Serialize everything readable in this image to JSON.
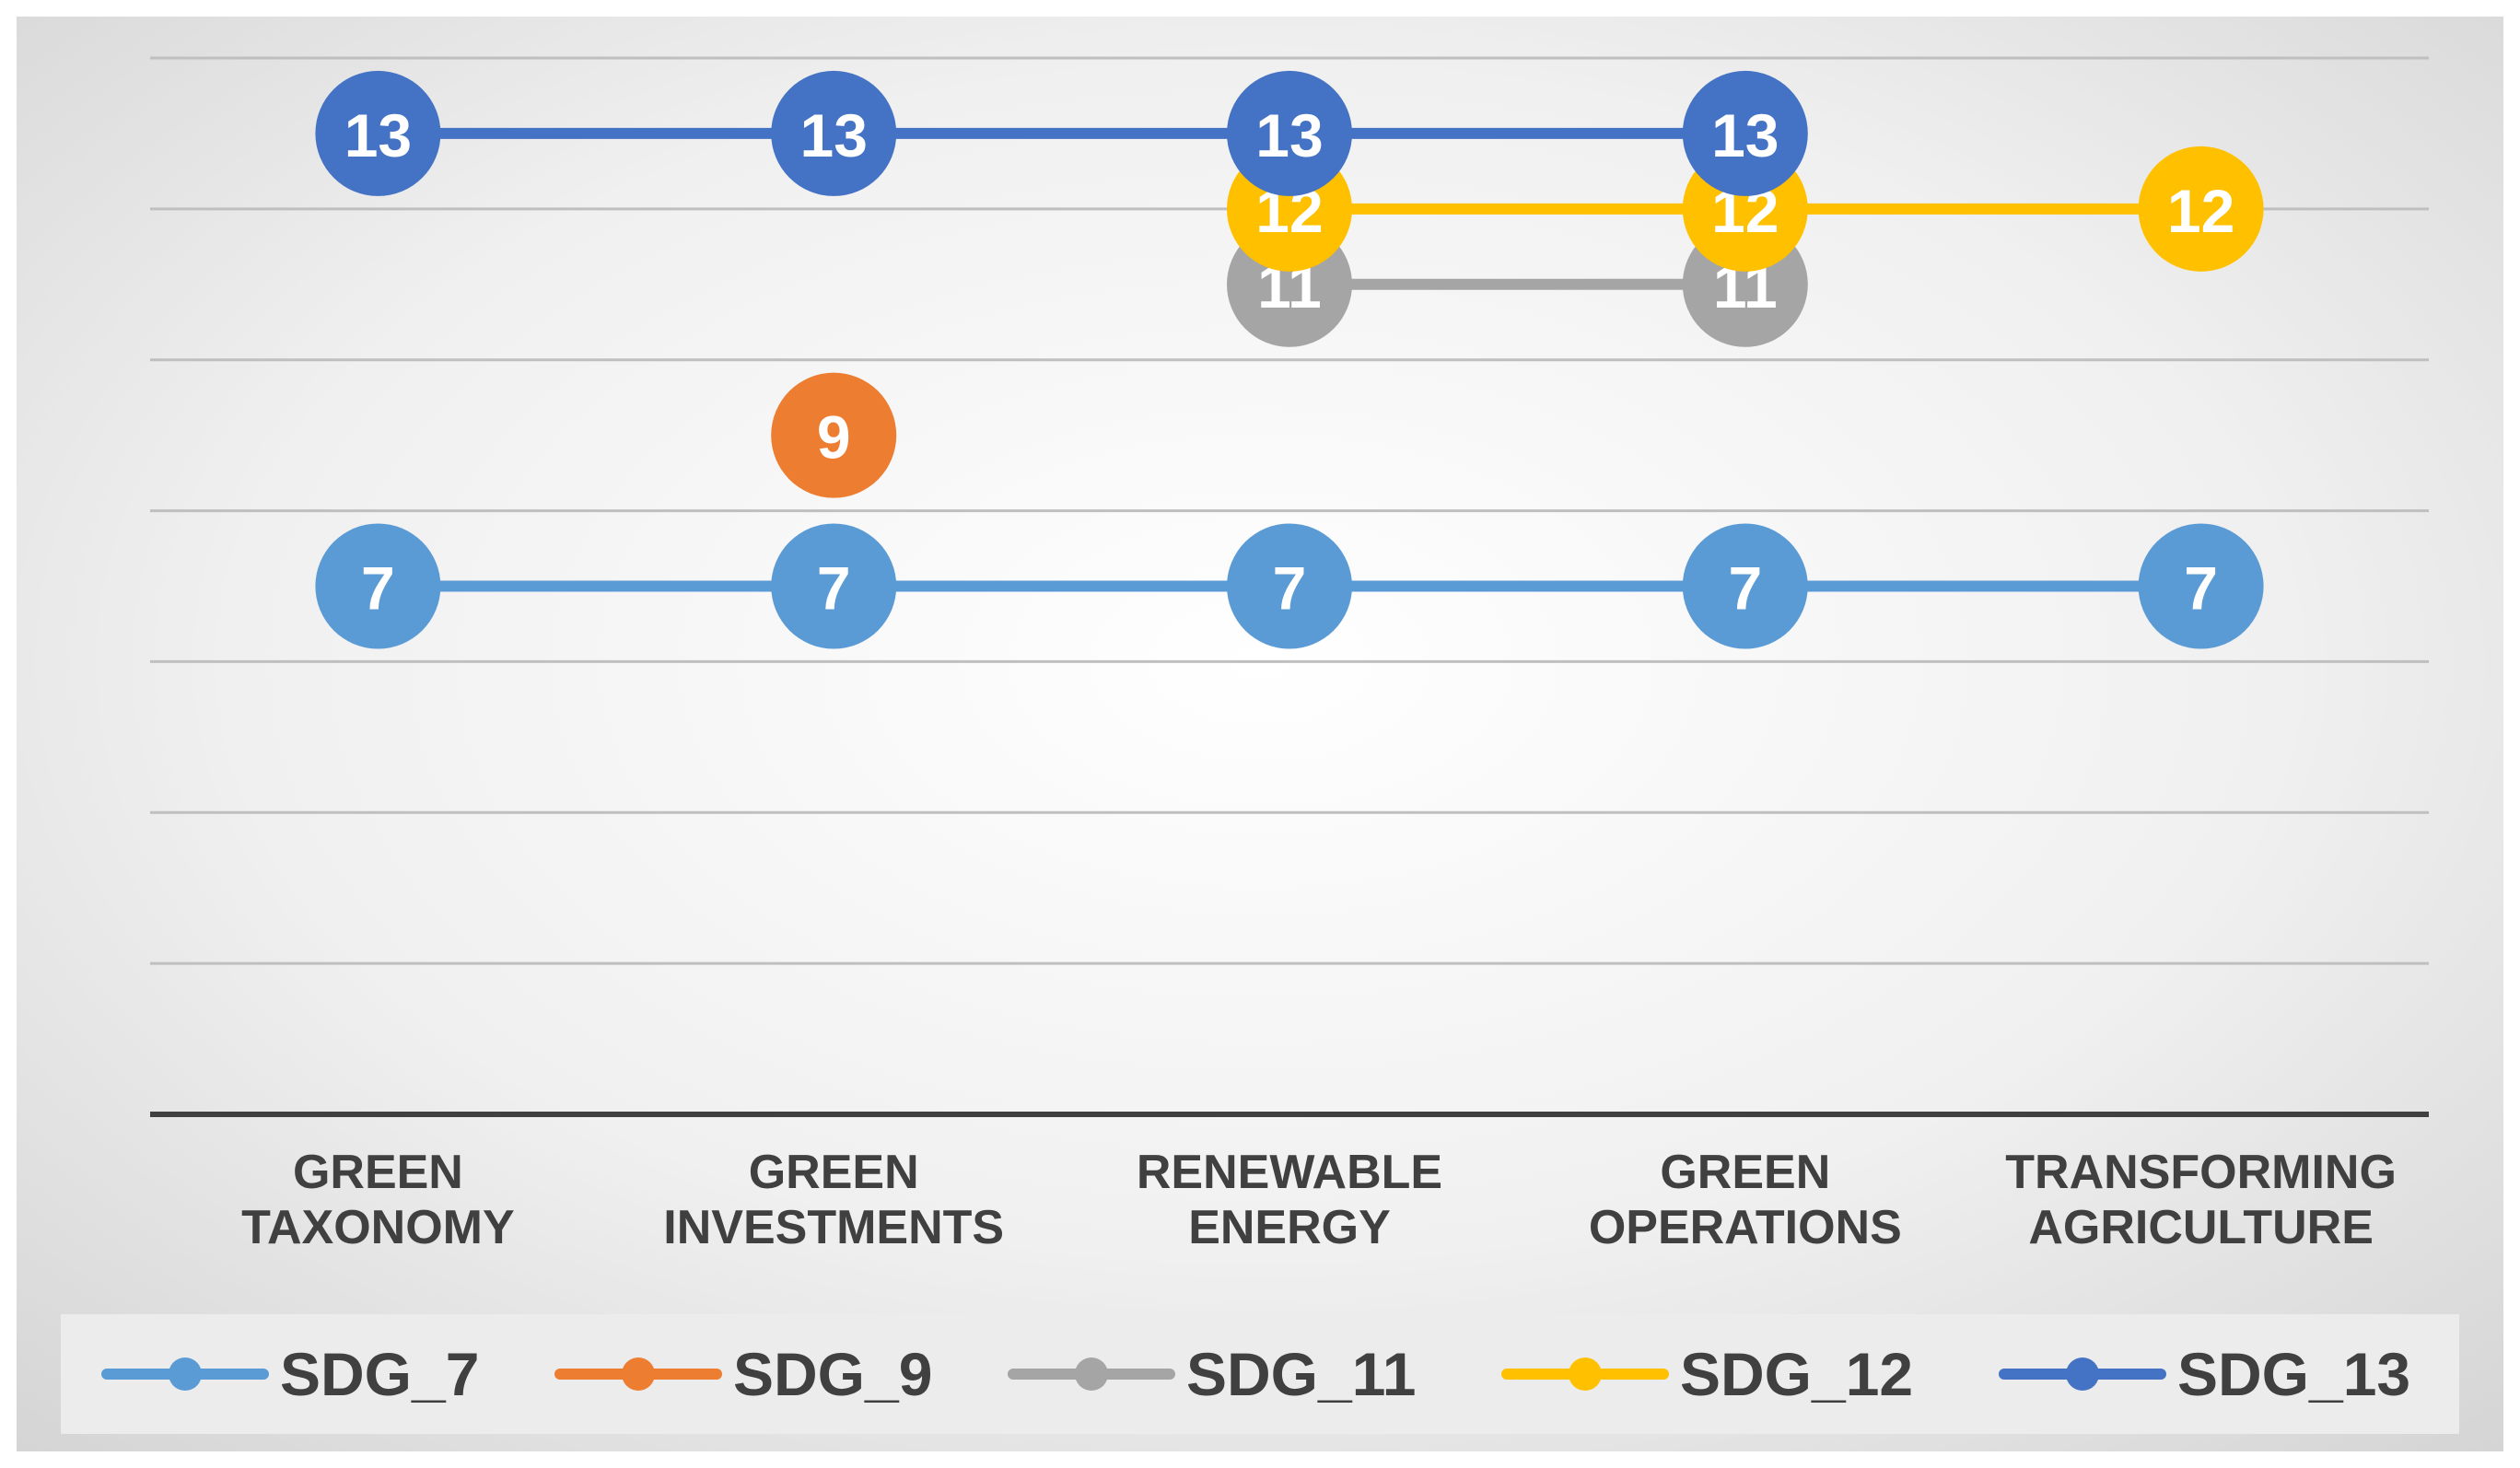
{
  "chart_data": {
    "type": "line",
    "title": "",
    "xlabel": "",
    "ylabel": "",
    "categories": [
      "GREEN TAXONOMY",
      "GREEN INVESTMENTS",
      "RENEWABLE ENERGY",
      "GREEN OPERATIONS",
      "TRANSFORMING AGRICULTURE"
    ],
    "category_lines": [
      [
        "GREEN",
        "TAXONOMY"
      ],
      [
        "GREEN",
        "INVESTMENTS"
      ],
      [
        "RENEWABLE",
        "ENERGY"
      ],
      [
        "GREEN",
        "OPERATIONS"
      ],
      [
        "TRANSFORMING",
        "AGRICULTURE"
      ]
    ],
    "ylim": [
      0,
      14
    ],
    "grid": true,
    "legend_position": "bottom",
    "data_labels": true,
    "series": [
      {
        "name": "SDG_7",
        "color": "#5B9BD5",
        "values": [
          7,
          7,
          7,
          7,
          7
        ]
      },
      {
        "name": "SDG_9",
        "color": "#ED7D31",
        "values": [
          null,
          9,
          null,
          null,
          null
        ]
      },
      {
        "name": "SDG_11",
        "color": "#A5A5A5",
        "values": [
          null,
          null,
          11,
          11,
          null
        ]
      },
      {
        "name": "SDG_12",
        "color": "#FFC000",
        "values": [
          null,
          null,
          12,
          12,
          12
        ]
      },
      {
        "name": "SDG_13",
        "color": "#4472C4",
        "values": [
          13,
          13,
          13,
          13,
          null
        ]
      }
    ]
  }
}
